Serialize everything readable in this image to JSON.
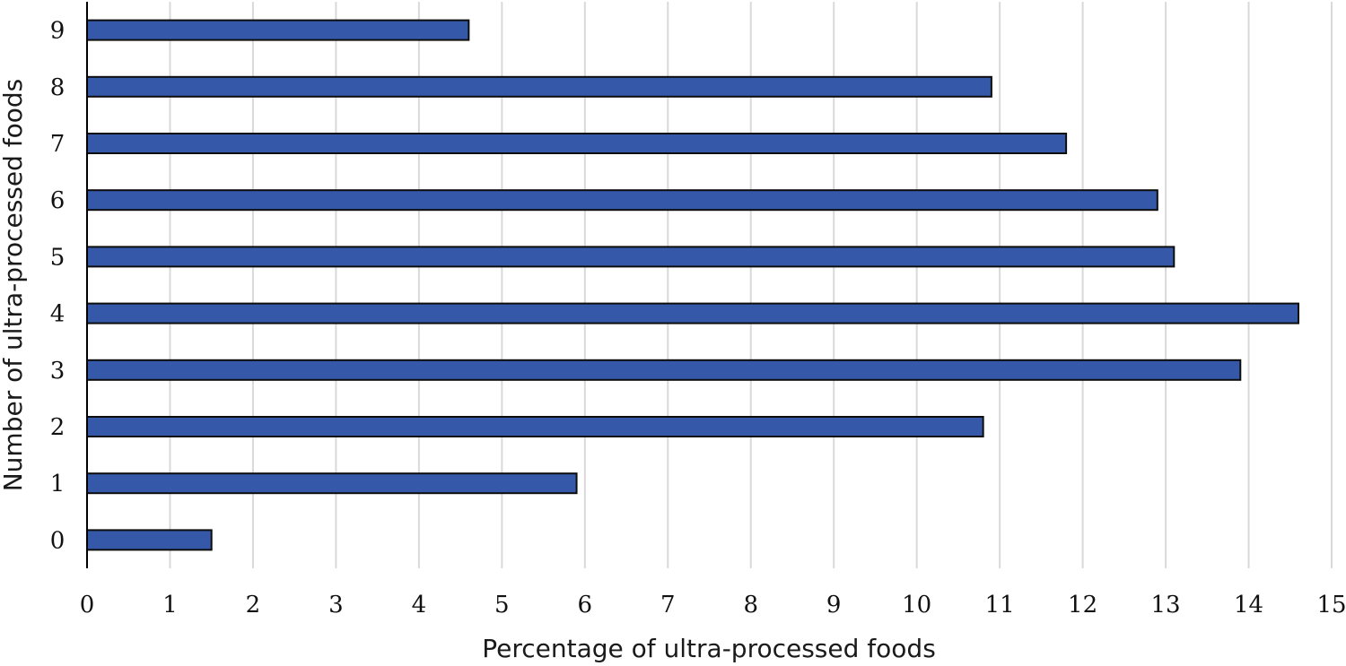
{
  "chart_data": {
    "type": "bar",
    "orientation": "horizontal",
    "categories": [
      "0",
      "1",
      "2",
      "3",
      "4",
      "5",
      "6",
      "7",
      "8",
      "9"
    ],
    "values": [
      1.5,
      5.9,
      10.8,
      13.9,
      14.6,
      13.1,
      12.9,
      11.8,
      10.9,
      4.6
    ],
    "xlabel": "Percentage of ultra-processed foods",
    "ylabel": "Number of ultra-processed foods",
    "xlim": [
      0,
      15
    ],
    "xticks": [
      "0",
      "1",
      "2",
      "3",
      "4",
      "5",
      "6",
      "7",
      "8",
      "9",
      "10",
      "11",
      "12",
      "13",
      "14",
      "15"
    ],
    "grid": "vertical",
    "legend": "none",
    "colors": {
      "bar": "#3559a8",
      "bar_border": "#0d0d0d",
      "grid": "#d9d9d9",
      "axis": "#000000"
    }
  }
}
